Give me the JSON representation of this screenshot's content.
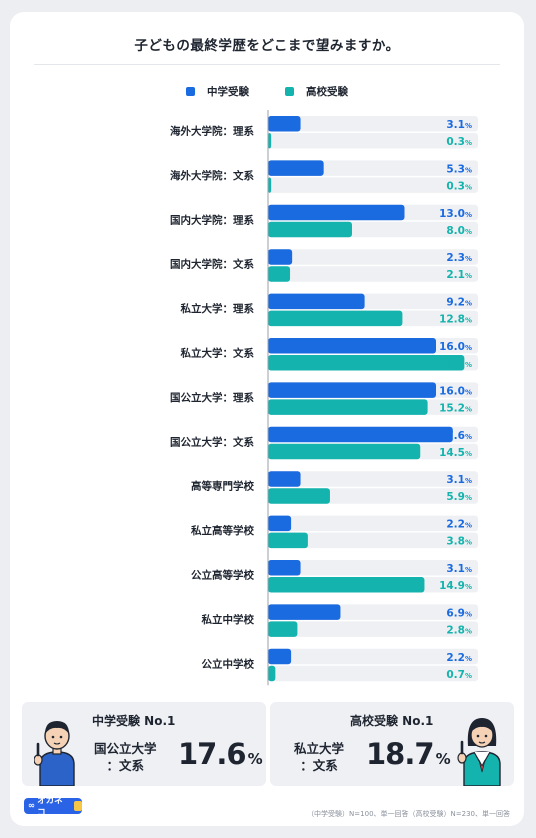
{
  "title": "子どもの最終学歴をどこまで望みますか。",
  "legend": {
    "junior": "中学受験",
    "high": "高校受験"
  },
  "colors": {
    "junior": "#1a6ae0",
    "high": "#14b3ad",
    "track": "#eef0f3"
  },
  "chart_data": {
    "type": "bar",
    "orientation": "horizontal",
    "categories": [
      "海外大学院：理系",
      "海外大学院：文系",
      "国内大学院：理系",
      "国内大学院：文系",
      "私立大学：理系",
      "私立大学：文系",
      "国公立大学：理系",
      "国公立大学：文系",
      "高等専門学校",
      "私立高等学校",
      "公立高等学校",
      "私立中学校",
      "公立中学校"
    ],
    "series": [
      {
        "name": "中学受験",
        "values": [
          3.1,
          5.3,
          13.0,
          2.3,
          9.2,
          16.0,
          16.0,
          17.6,
          3.1,
          2.2,
          3.1,
          6.9,
          2.2
        ]
      },
      {
        "name": "高校受験",
        "values": [
          0.3,
          0.3,
          8.0,
          2.1,
          12.8,
          18.7,
          15.2,
          14.5,
          5.9,
          3.8,
          14.9,
          2.8,
          0.7
        ]
      }
    ],
    "unit": "%",
    "xlim": [
      0,
      20
    ],
    "legend_position": "top"
  },
  "summary": {
    "left": {
      "heading": "中学受験 No.1",
      "name_line1": "国公立大学",
      "name_line2": "：文系",
      "value": "17.6",
      "unit": "%"
    },
    "right": {
      "heading": "高校受験 No.1",
      "name_line1": "私立大学",
      "name_line2": "：文系",
      "value": "18.7",
      "unit": "%"
    }
  },
  "logo_text": "オカネコ",
  "footnote": "（中学受験）N=100、単一回答（高校受験）N=230、単一回答"
}
